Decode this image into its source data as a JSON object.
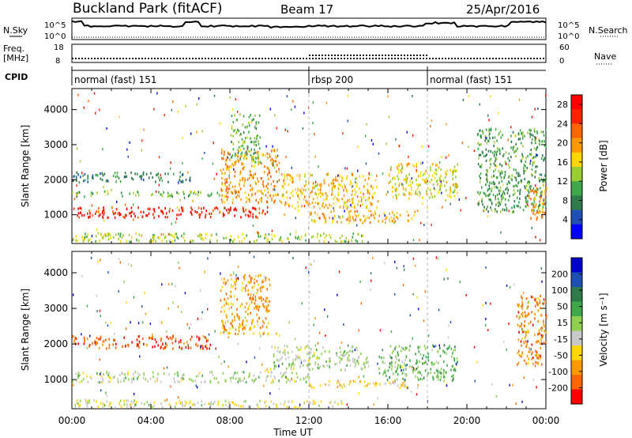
{
  "header": {
    "site": "Buckland Park (fitACF)",
    "beam": "Beam 17",
    "date": "25/Apr/2016"
  },
  "strip_labels": {
    "nsky": "N.Sky",
    "freq_1": "Freq.",
    "freq_2": "[MHz]",
    "cpid": "CPID",
    "nsearch": "N.Search",
    "nave": "Nave"
  },
  "strip_ticks": {
    "noise_top": "10^5",
    "noise_bottom": "10^0",
    "freq_left_top": "18",
    "freq_left_bottom": "8",
    "freq_right_top": "60",
    "freq_right_bottom": "0"
  },
  "cpid_segments": [
    {
      "label": "normal (fast) 151",
      "start_hour": 0,
      "end_hour": 12
    },
    {
      "label": "rbsp 200",
      "start_hour": 12,
      "end_hour": 18
    },
    {
      "label": "normal (fast) 151",
      "start_hour": 18,
      "end_hour": 24
    }
  ],
  "panels": {
    "power": {
      "ylabel": "Slant Range [km]",
      "yticks": [
        "1000",
        "2000",
        "3000",
        "4000"
      ],
      "colorbar_label": "Power [dB]",
      "colorbar_ticks": [
        "4",
        "8",
        "12",
        "16",
        "20",
        "24",
        "28"
      ]
    },
    "velocity": {
      "ylabel": "Slant Range [km]",
      "yticks": [
        "1000",
        "2000",
        "3000",
        "4000"
      ],
      "colorbar_label": "Velocity [m s⁻¹]",
      "colorbar_ticks": [
        "200",
        "100",
        "50",
        "15",
        "-15",
        "-50",
        "-100",
        "-200"
      ]
    }
  },
  "xaxis": {
    "label": "Time UT",
    "ticks": [
      "00:00",
      "04:00",
      "08:00",
      "12:00",
      "16:00",
      "20:00",
      "00:00"
    ]
  },
  "chart_data": [
    {
      "type": "heatmap",
      "title": "Buckland Park (fitACF) Beam 17 25/Apr/2016",
      "xlabel": "Time UT",
      "ylabel": "Slant Range [km]",
      "xlim_hours": [
        0,
        24
      ],
      "ylim": [
        180,
        4600
      ],
      "colorbar": {
        "label": "Power [dB]",
        "range": [
          0,
          30
        ],
        "colors": [
          "#0000ff",
          "#1f4fb5",
          "#2f7a4a",
          "#3fa84a",
          "#9acd32",
          "#ffd700",
          "#ff9900",
          "#ff6600",
          "#ff2200",
          "#ff0000"
        ]
      },
      "regions": [
        {
          "t": [
            0.0,
            10.0
          ],
          "r": [
            950,
            1250
          ],
          "value": 26
        },
        {
          "t": [
            0.3,
            2.4
          ],
          "r": [
            950,
            1100
          ],
          "value": 29
        },
        {
          "t": [
            0.0,
            7.5
          ],
          "r": [
            1550,
            1700
          ],
          "value": 12
        },
        {
          "t": [
            0.0,
            6.0
          ],
          "r": [
            1950,
            2250
          ],
          "value": 8
        },
        {
          "t": [
            7.5,
            10.5
          ],
          "r": [
            1350,
            2900
          ],
          "value": 20
        },
        {
          "t": [
            8.0,
            9.5
          ],
          "r": [
            2500,
            3900
          ],
          "value": 12
        },
        {
          "t": [
            10.5,
            15.5
          ],
          "r": [
            1200,
            2200
          ],
          "value": 18
        },
        {
          "t": [
            12.0,
            17.5
          ],
          "r": [
            800,
            1150
          ],
          "value": 18
        },
        {
          "t": [
            16.0,
            19.5
          ],
          "r": [
            1500,
            2500
          ],
          "value": 16
        },
        {
          "t": [
            0.0,
            15.0
          ],
          "r": [
            250,
            500
          ],
          "value": 14
        },
        {
          "t": [
            20.5,
            24.0
          ],
          "r": [
            1100,
            3500
          ],
          "value": 10
        },
        {
          "t": [
            23.0,
            24.0
          ],
          "r": [
            900,
            1900
          ],
          "value": 20
        }
      ]
    },
    {
      "type": "heatmap",
      "xlabel": "Time UT",
      "ylabel": "Slant Range [km]",
      "xlim_hours": [
        0,
        24
      ],
      "ylim": [
        180,
        4600
      ],
      "colorbar": {
        "label": "Velocity [m s⁻¹]",
        "range": [
          -200,
          200
        ],
        "colors": [
          "#ff0000",
          "#ff6600",
          "#ff9900",
          "#ffd700",
          "#c8c8c8",
          "#8fd14f",
          "#3fa84a",
          "#2f7a4a",
          "#1f4fb5",
          "#0000cc"
        ]
      },
      "regions": [
        {
          "t": [
            0.0,
            12.0
          ],
          "r": [
            950,
            1250
          ],
          "value": 0
        },
        {
          "t": [
            0.0,
            7.0
          ],
          "r": [
            1900,
            2250
          ],
          "value": -150
        },
        {
          "t": [
            7.5,
            10.0
          ],
          "r": [
            2300,
            4000
          ],
          "value": -100
        },
        {
          "t": [
            10.0,
            15.0
          ],
          "r": [
            1300,
            2000
          ],
          "value": 0
        },
        {
          "t": [
            12.0,
            17.0
          ],
          "r": [
            800,
            1000
          ],
          "value": -60
        },
        {
          "t": [
            15.5,
            19.5
          ],
          "r": [
            1000,
            2000
          ],
          "value": 40
        },
        {
          "t": [
            0.0,
            14.0
          ],
          "r": [
            250,
            450
          ],
          "value": -30
        },
        {
          "t": [
            22.5,
            24.0
          ],
          "r": [
            1400,
            3400
          ],
          "value": -120
        }
      ]
    }
  ]
}
